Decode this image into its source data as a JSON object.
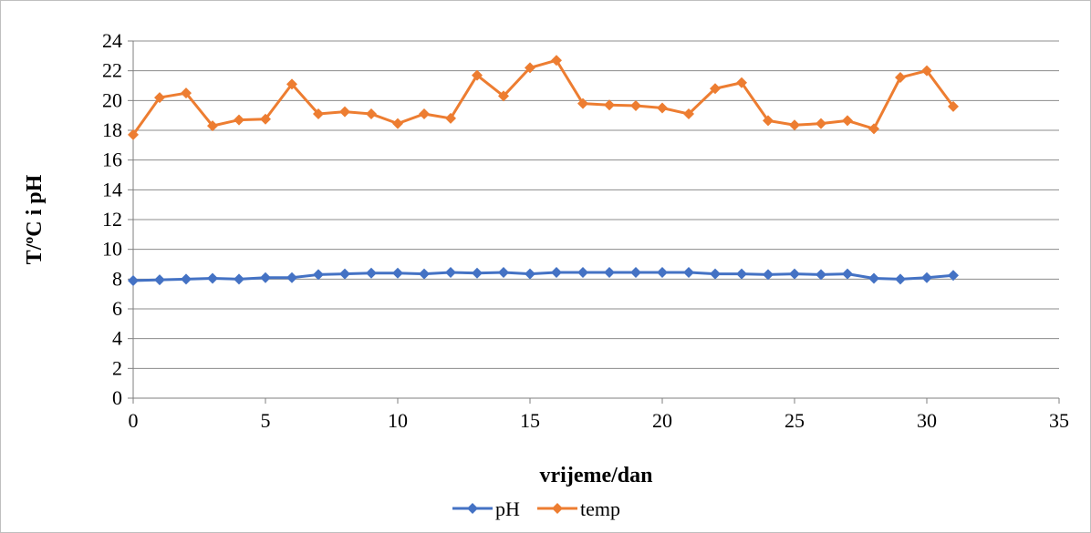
{
  "chart_data": {
    "type": "line",
    "title": "",
    "xlabel": "vrijeme/dan",
    "ylabel": "T/ºC i pH",
    "xlim": [
      0,
      35
    ],
    "ylim": [
      0,
      24
    ],
    "x_ticks": [
      "0",
      "5",
      "10",
      "15",
      "20",
      "25",
      "30",
      "35"
    ],
    "y_ticks": [
      "0",
      "2",
      "4",
      "6",
      "8",
      "10",
      "12",
      "14",
      "16",
      "18",
      "20",
      "22",
      "24"
    ],
    "grid": true,
    "legend_position": "bottom",
    "series": [
      {
        "name": "pH",
        "color": "#4472c4",
        "marker": "diamond",
        "x": [
          0,
          1,
          2,
          3,
          4,
          5,
          6,
          7,
          8,
          9,
          10,
          11,
          12,
          13,
          14,
          15,
          16,
          17,
          18,
          19,
          20,
          21,
          22,
          23,
          24,
          25,
          26,
          27,
          28,
          29,
          30,
          31
        ],
        "values": [
          7.9,
          7.95,
          8.0,
          8.05,
          8.0,
          8.1,
          8.1,
          8.3,
          8.35,
          8.4,
          8.4,
          8.35,
          8.45,
          8.4,
          8.45,
          8.35,
          8.45,
          8.45,
          8.45,
          8.45,
          8.45,
          8.45,
          8.35,
          8.35,
          8.3,
          8.35,
          8.3,
          8.35,
          8.05,
          8.0,
          8.1,
          8.25
        ]
      },
      {
        "name": "temp",
        "color": "#ed7d31",
        "marker": "diamond",
        "x": [
          0,
          1,
          2,
          3,
          4,
          5,
          6,
          7,
          8,
          9,
          10,
          11,
          12,
          13,
          14,
          15,
          16,
          17,
          18,
          19,
          20,
          21,
          22,
          23,
          24,
          25,
          26,
          27,
          28,
          29,
          30,
          31
        ],
        "values": [
          17.7,
          20.2,
          20.5,
          18.3,
          18.7,
          18.75,
          21.1,
          19.1,
          19.25,
          19.1,
          18.45,
          19.1,
          18.8,
          21.7,
          20.3,
          22.2,
          22.7,
          19.8,
          19.7,
          19.65,
          19.5,
          19.1,
          20.8,
          21.2,
          18.65,
          18.35,
          18.45,
          18.65,
          18.1,
          21.55,
          22.0,
          19.6
        ]
      }
    ]
  }
}
